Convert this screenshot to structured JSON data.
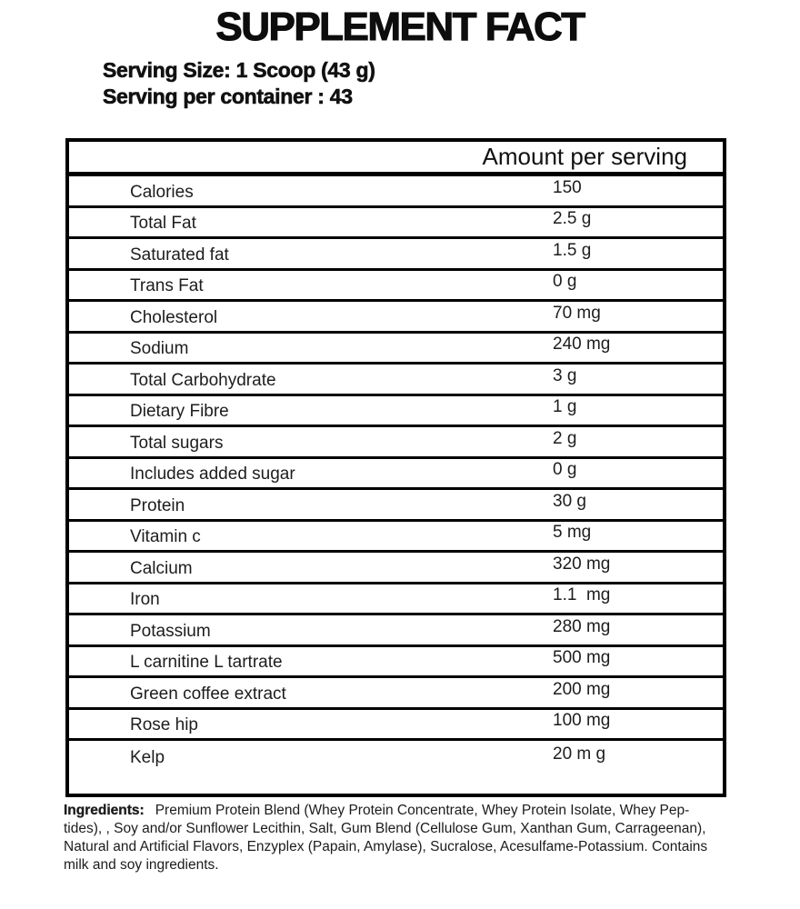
{
  "title": "SUPPLEMENT FACT",
  "serving": {
    "size_line": "Serving Size: 1 Scoop (43 g)",
    "container_line": "Serving per container : 43"
  },
  "table": {
    "header": "Amount per serving",
    "rows": [
      {
        "label": "Calories",
        "value": "150"
      },
      {
        "label": "Total Fat",
        "value": "2.5 g"
      },
      {
        "label": "Saturated fat",
        "value": "1.5 g"
      },
      {
        "label": "Trans Fat",
        "value": "0 g"
      },
      {
        "label": "Cholesterol",
        "value": "70 mg"
      },
      {
        "label": "Sodium",
        "value": "240 mg"
      },
      {
        "label": "Total Carbohydrate",
        "value": "3 g"
      },
      {
        "label": "Dietary Fibre",
        "value": "1 g"
      },
      {
        "label": "Total sugars",
        "value": "2 g"
      },
      {
        "label": "Includes added sugar",
        "value": "0 g"
      },
      {
        "label": "Protein",
        "value": "30 g"
      },
      {
        "label": "Vitamin c",
        "value": "5 mg"
      },
      {
        "label": "Calcium",
        "value": "320 mg"
      },
      {
        "label": "Iron",
        "value": "1.1  mg"
      },
      {
        "label": "Potassium",
        "value": "280 mg"
      },
      {
        "label": "L carnitine L tartrate",
        "value": "500 mg"
      },
      {
        "label": "Green coffee extract",
        "value": "200 mg"
      },
      {
        "label": "Rose hip",
        "value": "100 mg"
      },
      {
        "label": "Kelp",
        "value": "20 m g"
      }
    ]
  },
  "ingredients": {
    "label": "Ingredients:",
    "lines": [
      "Premium Protein Blend (Whey Protein Concentrate, Whey Protein Isolate, Whey Pep-",
      "tides), , Soy and/or Sunflower Lecithin, Salt, Gum Blend (Cellulose Gum, Xanthan Gum, Carrageenan),",
      "Natural and Artificial Flavors, Enzyplex (Papain, Amylase), Sucralose, Acesulfame-Potassium. Contains",
      "milk and soy ingredients."
    ]
  },
  "colors": {
    "background": "#ffffff",
    "border": "#000000",
    "text": "#1d1d1d",
    "title": "#0d0d0d"
  }
}
